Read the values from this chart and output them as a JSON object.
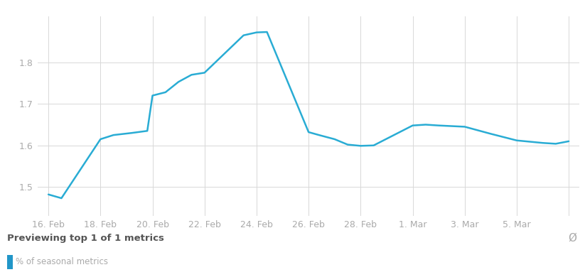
{
  "x_data": [
    0,
    0.5,
    2,
    2.5,
    3.2,
    3.8,
    4,
    4.5,
    5,
    5.5,
    6,
    7.5,
    8,
    8.4,
    10,
    10.4,
    11,
    11.5,
    12,
    12.5,
    14,
    14.5,
    15,
    16,
    17,
    18,
    19,
    19.5,
    20
  ],
  "y_data": [
    1.482,
    1.473,
    1.615,
    1.625,
    1.63,
    1.635,
    1.72,
    1.728,
    1.753,
    1.77,
    1.775,
    1.865,
    1.872,
    1.873,
    1.632,
    1.625,
    1.615,
    1.602,
    1.599,
    1.6,
    1.648,
    1.65,
    1.648,
    1.645,
    1.628,
    1.612,
    1.606,
    1.604,
    1.61
  ],
  "x_tick_positions": [
    0,
    2,
    4,
    6,
    8,
    10,
    12,
    14,
    16,
    18,
    20
  ],
  "x_tick_labels": [
    "16. Feb",
    "18. Feb",
    "20. Feb",
    "22. Feb",
    "24. Feb",
    "26. Feb",
    "28. Feb",
    "1. Mar",
    "3. Mar",
    "5. Mar",
    ""
  ],
  "xlim": [
    -0.4,
    20.4
  ],
  "ylim": [
    1.43,
    1.91
  ],
  "yticks": [
    1.5,
    1.6,
    1.7,
    1.8
  ],
  "line_color": "#29acd4",
  "line_width": 1.8,
  "grid_color": "#d8d8d8",
  "bg_color": "#ffffff",
  "footer_bg": "#efefef",
  "footer_line_color": "#dddddd",
  "footer_text": "Previewing top 1 of 1 metrics",
  "legend_label": "% of seasonal metrics",
  "legend_color": "#2196c8",
  "tick_color": "#aaaaaa",
  "tick_fontsize": 9,
  "footer_title_fontsize": 9.5,
  "legend_fontsize": 8.5
}
